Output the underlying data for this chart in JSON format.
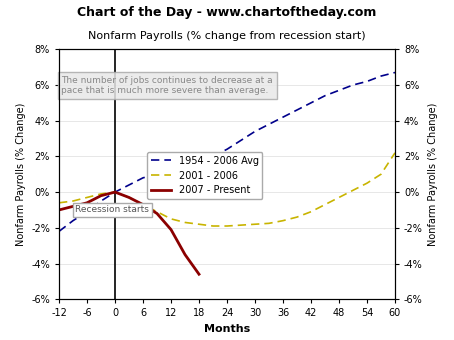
{
  "title_banner": "Chart of the Day - www.chartoftheday.com",
  "title_banner_bg": "#8fad3f",
  "subtitle": "Nonfarm Payrolls (% change from recession start)",
  "annotation": "The number of jobs continues to decrease at a\npace that is much more severe than average.",
  "ylabel_left": "Nonfarm Payrolls (% Change)",
  "ylabel_right": "Nonfarm Payrolls (% Change)",
  "xlabel": "Months",
  "xlim": [
    -12,
    60
  ],
  "ylim": [
    -6,
    8
  ],
  "xticks": [
    -12,
    -6,
    0,
    6,
    12,
    18,
    24,
    30,
    36,
    42,
    48,
    54,
    60
  ],
  "yticks": [
    -6,
    -4,
    -2,
    0,
    2,
    4,
    6,
    8
  ],
  "ytick_labels": [
    "-6%",
    "-4%",
    "-2%",
    "0%",
    "2%",
    "4%",
    "6%",
    "8%"
  ],
  "avg_1954_x": [
    -12,
    -9,
    -6,
    -3,
    0,
    3,
    6,
    9,
    12,
    15,
    18,
    21,
    24,
    27,
    30,
    33,
    36,
    39,
    42,
    45,
    48,
    51,
    54,
    57,
    60
  ],
  "avg_1954_y": [
    -2.2,
    -1.6,
    -1.1,
    -0.5,
    0.0,
    0.4,
    0.8,
    1.0,
    1.1,
    1.3,
    1.6,
    2.0,
    2.4,
    2.9,
    3.4,
    3.8,
    4.2,
    4.6,
    5.0,
    5.4,
    5.7,
    6.0,
    6.2,
    6.5,
    6.7
  ],
  "avg_2001_x": [
    -12,
    -9,
    -6,
    -3,
    0,
    3,
    6,
    9,
    12,
    15,
    18,
    21,
    24,
    27,
    30,
    33,
    36,
    39,
    42,
    45,
    48,
    51,
    54,
    57,
    60
  ],
  "avg_2001_y": [
    -0.6,
    -0.5,
    -0.3,
    -0.1,
    0.0,
    -0.3,
    -0.7,
    -1.1,
    -1.5,
    -1.7,
    -1.8,
    -1.9,
    -1.9,
    -1.85,
    -1.8,
    -1.75,
    -1.6,
    -1.4,
    -1.1,
    -0.7,
    -0.3,
    0.1,
    0.5,
    1.0,
    2.2
  ],
  "present_2007_x": [
    -12,
    -9,
    -6,
    -3,
    0,
    3,
    6,
    9,
    12,
    15,
    18
  ],
  "present_2007_y": [
    -1.0,
    -0.8,
    -0.6,
    -0.2,
    0.0,
    -0.3,
    -0.7,
    -1.2,
    -2.1,
    -3.5,
    -4.6
  ],
  "color_avg": "#00008b",
  "color_2001": "#c8b400",
  "color_2007": "#8b0000",
  "recession_line_x": 0,
  "bg_plot": "#ffffff",
  "bg_figure": "#ffffff"
}
